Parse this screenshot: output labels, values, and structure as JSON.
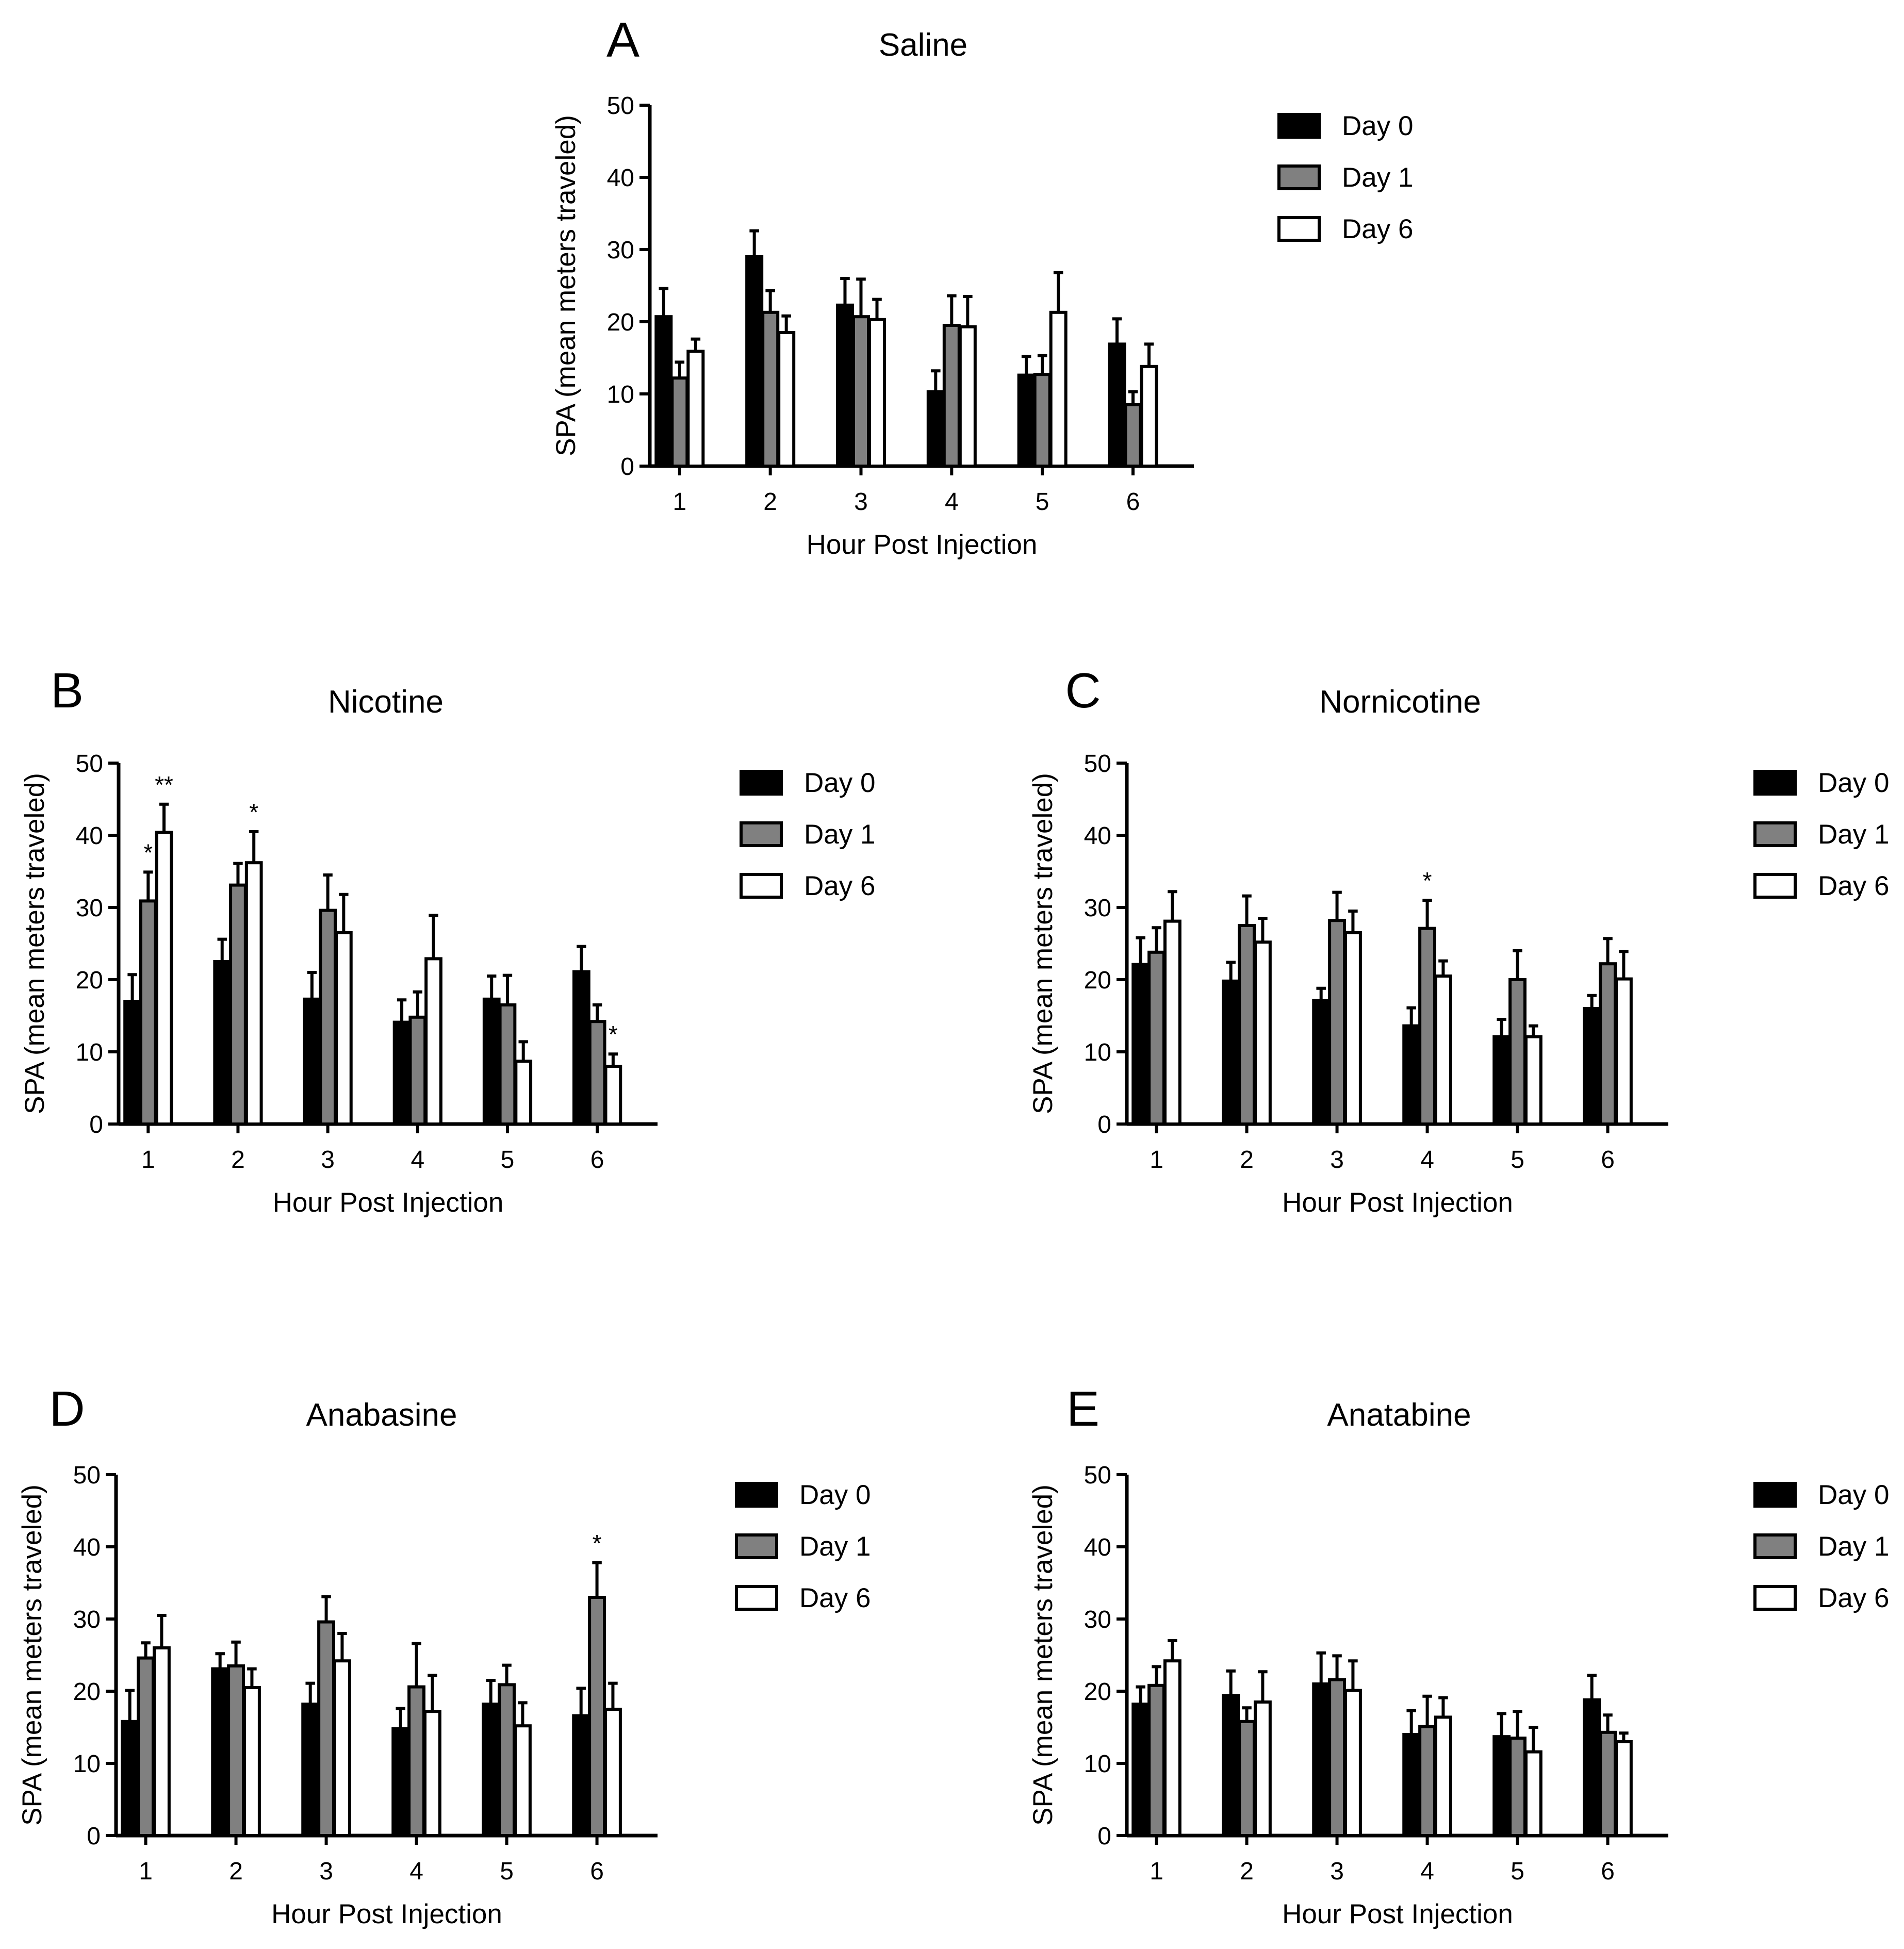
{
  "chart_data": [
    {
      "type": "bar",
      "panel": "A",
      "title": "Saline",
      "xlabel": "Hour Post Injection",
      "ylabel": "SPA (mean meters traveled)",
      "ylim": [
        0,
        50
      ],
      "yticks": [
        0,
        10,
        20,
        30,
        40,
        50
      ],
      "categories": [
        "1",
        "2",
        "3",
        "4",
        "5",
        "6"
      ],
      "series": [
        {
          "name": "Day 0",
          "color": "#000000",
          "values": [
            20.7,
            29.0,
            22.3,
            10.3,
            12.6,
            16.9
          ],
          "errors": [
            3.9,
            3.6,
            3.7,
            2.9,
            2.6,
            3.5
          ],
          "stars": [
            "",
            "",
            "",
            "",
            "",
            ""
          ]
        },
        {
          "name": "Day 1",
          "color": "#808080",
          "values": [
            12.2,
            21.3,
            20.7,
            19.5,
            12.7,
            8.5
          ],
          "errors": [
            2.2,
            3.0,
            5.2,
            4.1,
            2.6,
            1.8
          ],
          "stars": [
            "",
            "",
            "",
            "",
            "",
            ""
          ]
        },
        {
          "name": "Day 6",
          "color": "#ffffff",
          "values": [
            15.9,
            18.5,
            20.3,
            19.3,
            21.3,
            13.8
          ],
          "errors": [
            1.7,
            2.3,
            2.8,
            4.2,
            5.5,
            3.1
          ],
          "stars": [
            "",
            "",
            "",
            "",
            "",
            ""
          ]
        }
      ]
    },
    {
      "type": "bar",
      "panel": "B",
      "title": "Nicotine",
      "xlabel": "Hour Post Injection",
      "ylabel": "SPA (mean meters traveled)",
      "ylim": [
        0,
        50
      ],
      "yticks": [
        0,
        10,
        20,
        30,
        40,
        50
      ],
      "categories": [
        "1",
        "2",
        "3",
        "4",
        "5",
        "6"
      ],
      "series": [
        {
          "name": "Day 0",
          "color": "#000000",
          "values": [
            17.0,
            22.5,
            17.3,
            14.1,
            17.3,
            21.1
          ],
          "errors": [
            3.7,
            3.1,
            3.7,
            3.1,
            3.2,
            3.5
          ],
          "stars": [
            "",
            "",
            "",
            "",
            "",
            ""
          ]
        },
        {
          "name": "Day 1",
          "color": "#808080",
          "values": [
            30.9,
            33.1,
            29.6,
            14.8,
            16.5,
            14.2
          ],
          "errors": [
            4.0,
            3.0,
            4.9,
            3.5,
            4.1,
            2.3
          ],
          "stars": [
            "*",
            "",
            "",
            "",
            "",
            ""
          ]
        },
        {
          "name": "Day 6",
          "color": "#ffffff",
          "values": [
            40.4,
            36.2,
            26.5,
            22.9,
            8.7,
            8.0
          ],
          "errors": [
            3.9,
            4.3,
            5.3,
            6.0,
            2.7,
            1.7
          ],
          "stars": [
            "**",
            "*",
            "",
            "",
            "",
            "*"
          ]
        }
      ]
    },
    {
      "type": "bar",
      "panel": "C",
      "title": "Nornicotine",
      "xlabel": "Hour Post Injection",
      "ylabel": "SPA (mean meters traveled)",
      "ylim": [
        0,
        50
      ],
      "yticks": [
        0,
        10,
        20,
        30,
        40,
        50
      ],
      "categories": [
        "1",
        "2",
        "3",
        "4",
        "5",
        "6"
      ],
      "series": [
        {
          "name": "Day 0",
          "color": "#000000",
          "values": [
            22.1,
            19.8,
            17.1,
            13.6,
            12.1,
            16.0
          ],
          "errors": [
            3.7,
            2.6,
            1.7,
            2.5,
            2.4,
            1.8
          ],
          "stars": [
            "",
            "",
            "",
            "",
            "",
            ""
          ]
        },
        {
          "name": "Day 1",
          "color": "#808080",
          "values": [
            23.8,
            27.5,
            28.2,
            27.1,
            20.0,
            22.2
          ],
          "errors": [
            3.4,
            4.1,
            3.9,
            3.9,
            4.0,
            3.5
          ],
          "stars": [
            "",
            "",
            "",
            "*",
            "",
            ""
          ]
        },
        {
          "name": "Day 6",
          "color": "#ffffff",
          "values": [
            28.1,
            25.2,
            26.5,
            20.5,
            12.1,
            20.1
          ],
          "errors": [
            4.1,
            3.3,
            3.0,
            2.1,
            1.5,
            3.8
          ],
          "stars": [
            "",
            "",
            "",
            "",
            "",
            ""
          ]
        }
      ]
    },
    {
      "type": "bar",
      "panel": "D",
      "title": "Anabasine",
      "xlabel": "Hour Post Injection",
      "ylabel": "SPA (mean meters traveled)",
      "ylim": [
        0,
        50
      ],
      "yticks": [
        0,
        10,
        20,
        30,
        40,
        50
      ],
      "categories": [
        "1",
        "2",
        "3",
        "4",
        "5",
        "6"
      ],
      "series": [
        {
          "name": "Day 0",
          "color": "#000000",
          "values": [
            15.8,
            23.1,
            18.2,
            14.8,
            18.2,
            16.6
          ],
          "errors": [
            4.3,
            2.1,
            2.9,
            2.8,
            3.3,
            3.8
          ],
          "stars": [
            "",
            "",
            "",
            "",
            "",
            ""
          ]
        },
        {
          "name": "Day 1",
          "color": "#808080",
          "values": [
            24.6,
            23.5,
            29.6,
            20.6,
            20.9,
            33.0
          ],
          "errors": [
            2.1,
            3.3,
            3.5,
            6.0,
            2.7,
            4.8
          ],
          "stars": [
            "",
            "",
            "",
            "",
            "",
            "*"
          ]
        },
        {
          "name": "Day 6",
          "color": "#ffffff",
          "values": [
            26.0,
            20.5,
            24.2,
            17.2,
            15.2,
            17.5
          ],
          "errors": [
            4.5,
            2.6,
            3.8,
            5.0,
            3.2,
            3.6
          ],
          "stars": [
            "",
            "",
            "",
            "",
            "",
            ""
          ]
        }
      ]
    },
    {
      "type": "bar",
      "panel": "E",
      "title": "Anatabine",
      "xlabel": "Hour Post Injection",
      "ylabel": "SPA (mean meters traveled)",
      "ylim": [
        0,
        50
      ],
      "yticks": [
        0,
        10,
        20,
        30,
        40,
        50
      ],
      "categories": [
        "1",
        "2",
        "3",
        "4",
        "5",
        "6"
      ],
      "series": [
        {
          "name": "Day 0",
          "color": "#000000",
          "values": [
            18.2,
            19.4,
            21.0,
            14.0,
            13.7,
            18.8
          ],
          "errors": [
            2.4,
            3.4,
            4.3,
            3.3,
            3.2,
            3.4
          ],
          "stars": [
            "",
            "",
            "",
            "",
            "",
            ""
          ]
        },
        {
          "name": "Day 1",
          "color": "#808080",
          "values": [
            20.8,
            15.8,
            21.6,
            15.1,
            13.5,
            14.3
          ],
          "errors": [
            2.6,
            1.9,
            3.3,
            4.2,
            3.7,
            2.4
          ],
          "stars": [
            "",
            "",
            "",
            "",
            "",
            ""
          ]
        },
        {
          "name": "Day 6",
          "color": "#ffffff",
          "values": [
            24.2,
            18.5,
            20.1,
            16.4,
            11.6,
            13.0
          ],
          "errors": [
            2.8,
            4.2,
            4.1,
            2.7,
            3.4,
            1.2
          ],
          "stars": [
            "",
            "",
            "",
            "",
            "",
            ""
          ]
        }
      ]
    }
  ]
}
